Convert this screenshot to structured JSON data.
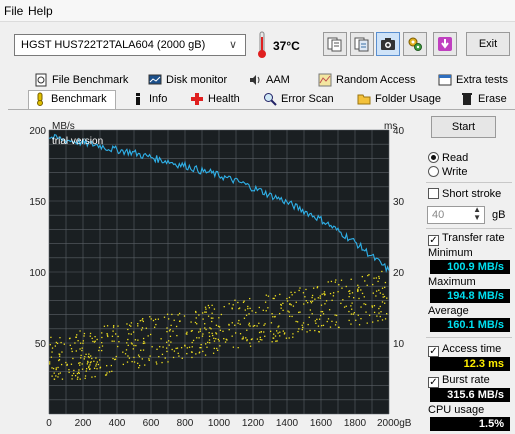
{
  "menu": {
    "file": "File",
    "help": "Help"
  },
  "toolbar": {
    "drive": "HGST HUS722T2TALA604 (2000 gB)",
    "temperature": "37°C",
    "exit_label": "Exit"
  },
  "tabs_top": [
    {
      "label": "File Benchmark",
      "icon": "file-benchmark-icon"
    },
    {
      "label": "Disk monitor",
      "icon": "disk-monitor-icon"
    },
    {
      "label": "AAM",
      "icon": "speaker-icon"
    },
    {
      "label": "Random Access",
      "icon": "random-access-icon"
    },
    {
      "label": "Extra tests",
      "icon": "extra-tests-icon"
    }
  ],
  "tabs_bottom": [
    {
      "label": "Benchmark",
      "icon": "benchmark-icon",
      "selected": true
    },
    {
      "label": "Info",
      "icon": "info-icon"
    },
    {
      "label": "Health",
      "icon": "health-icon"
    },
    {
      "label": "Error Scan",
      "icon": "error-scan-icon"
    },
    {
      "label": "Folder Usage",
      "icon": "folder-icon"
    },
    {
      "label": "Erase",
      "icon": "trash-icon"
    }
  ],
  "panel": {
    "start_label": "Start",
    "read_label": "Read",
    "write_label": "Write",
    "mode": "read",
    "short_stroke_label": "Short stroke",
    "short_stroke_checked": false,
    "short_stroke_value": "40",
    "short_stroke_unit": "gB",
    "transfer_rate_label": "Transfer rate",
    "transfer_rate_checked": true,
    "minimum_label": "Minimum",
    "minimum_value": "100.9 MB/s",
    "maximum_label": "Maximum",
    "maximum_value": "194.8 MB/s",
    "average_label": "Average",
    "average_value": "160.1 MB/s",
    "access_time_label": "Access time",
    "access_time_checked": true,
    "access_time_value": "12.3 ms",
    "burst_rate_label": "Burst rate",
    "burst_rate_checked": true,
    "burst_rate_value": "315.6 MB/s",
    "cpu_usage_label": "CPU usage",
    "cpu_usage_value": "1.5%"
  },
  "chart_data": {
    "type": "line",
    "watermark": "trial version",
    "x_unit_label": "2000gB",
    "left_unit": "MB/s",
    "right_unit": "ms",
    "xlim": [
      0,
      2000
    ],
    "ylim_left": [
      0,
      200
    ],
    "ylim_right": [
      0,
      40
    ],
    "x_ticks": [
      0,
      200,
      400,
      600,
      800,
      1000,
      1200,
      1400,
      1600,
      1800,
      2000
    ],
    "x_tick_labels": [
      "0",
      "200",
      "400",
      "600",
      "800",
      "1000",
      "1200",
      "1400",
      "1600",
      "1800",
      "2000gB"
    ],
    "y_left_ticks": [
      50,
      100,
      150,
      200
    ],
    "y_right_ticks": [
      10,
      20,
      30,
      40
    ],
    "grid": true,
    "colors": {
      "background": "#1a1f22",
      "grid": "#5a6066",
      "transfer": "#2fb0e8",
      "access": "#f0e020"
    },
    "transfer_rate": {
      "x": [
        0,
        50,
        100,
        150,
        200,
        250,
        300,
        350,
        400,
        450,
        500,
        550,
        600,
        650,
        700,
        750,
        800,
        850,
        900,
        950,
        1000,
        1050,
        1100,
        1150,
        1200,
        1250,
        1300,
        1350,
        1400,
        1450,
        1500,
        1550,
        1600,
        1650,
        1700,
        1750,
        1800,
        1850,
        1900,
        1950,
        2000
      ],
      "y": [
        195,
        194,
        193,
        192,
        191,
        190,
        189,
        187,
        186,
        185,
        184,
        182,
        181,
        179,
        178,
        176,
        175,
        173,
        171,
        170,
        168,
        166,
        164,
        162,
        159,
        157,
        154,
        152,
        149,
        146,
        143,
        140,
        137,
        133,
        129,
        125,
        121,
        116,
        111,
        106,
        101
      ]
    },
    "access_time": {
      "x_range": [
        0,
        2000
      ],
      "y_range_ms": [
        5,
        21
      ],
      "trend_ms": [
        7.5,
        17.0
      ]
    }
  }
}
